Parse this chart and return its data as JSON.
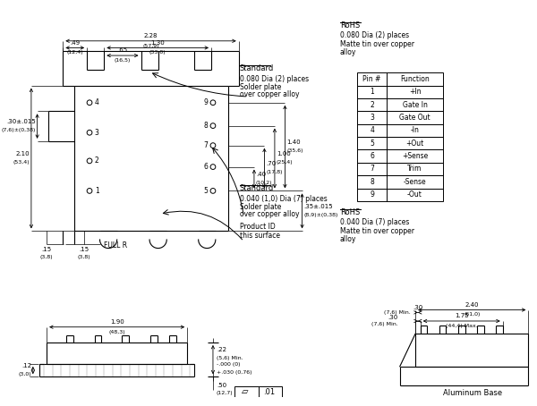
{
  "bg_color": "#ffffff",
  "pin_table": {
    "headers": [
      "Pin #",
      "Function"
    ],
    "rows": [
      [
        "1",
        "+In"
      ],
      [
        "2",
        "Gate In"
      ],
      [
        "3",
        "Gate Out"
      ],
      [
        "4",
        "-In"
      ],
      [
        "5",
        "+Out"
      ],
      [
        "6",
        "+Sense"
      ],
      [
        "7",
        "Trim"
      ],
      [
        "8",
        "-Sense"
      ],
      [
        "9",
        "-Out"
      ]
    ]
  }
}
